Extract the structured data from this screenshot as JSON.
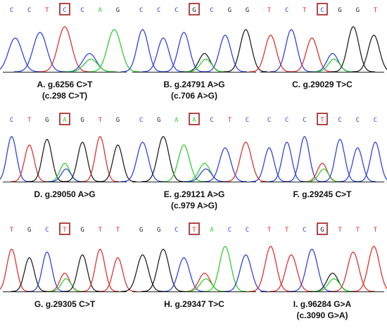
{
  "colors": {
    "A": "#33cc33",
    "C": "#3344dd",
    "G": "#222222",
    "T": "#dd3333",
    "highlight": "#a11a1a"
  },
  "panels": [
    {
      "sequence": [
        "C",
        "C",
        "T",
        "C",
        "C",
        "A",
        "G"
      ],
      "highlight": 3,
      "traces": "CCTCA",
      "caption": "A. g.6256 C>T",
      "subcaption": "(c.298 C>T)"
    },
    {
      "sequence": [
        "C",
        "C",
        "C",
        "G",
        "C",
        "G",
        "G"
      ],
      "highlight": 3,
      "traces": "CCCGCG",
      "caption": "B. g.24791 A>G",
      "subcaption": "(c.706 A>G)"
    },
    {
      "sequence": [
        "T",
        "C",
        "T",
        "C",
        "G",
        "G",
        "T"
      ],
      "highlight": 3,
      "traces": "TCTCGG",
      "caption": "C. g.29029 T>C",
      "subcaption": ""
    },
    {
      "sequence": [
        "C",
        "T",
        "G",
        "A",
        "G",
        "T",
        "G"
      ],
      "highlight": 3,
      "traces": "CTGAGTG",
      "caption": "D. g.29050 A>G",
      "subcaption": ""
    },
    {
      "sequence": [
        "C",
        "G",
        "A",
        "A",
        "C",
        "T",
        "C"
      ],
      "highlight": 3,
      "traces": "CGAACT",
      "caption": "E. g.29121 A>G",
      "subcaption": "(c.979 A>G)"
    },
    {
      "sequence": [
        "C",
        "C",
        "C",
        "T",
        "C",
        "C",
        "C"
      ],
      "highlight": 3,
      "traces": "CCCTCCC",
      "caption": "F. g.29245 C>T",
      "subcaption": ""
    },
    {
      "sequence": [
        "T",
        "G",
        "C",
        "T",
        "G",
        "T",
        "T"
      ],
      "highlight": 3,
      "traces": "TGCTGTT",
      "caption": "G. g.29305 C>T",
      "subcaption": ""
    },
    {
      "sequence": [
        "G",
        "G",
        "C",
        "T",
        "A",
        "C",
        "C"
      ],
      "highlight": 3,
      "traces": "GGCTAC",
      "caption": "H. g.29347 T>C",
      "subcaption": ""
    },
    {
      "sequence": [
        "T",
        "T",
        "C",
        "G",
        "T",
        "T",
        "T"
      ],
      "highlight": 3,
      "traces": "TTCGTT",
      "caption": "I. g.96284 G>A",
      "subcaption": "(c.3090 G>A)"
    }
  ]
}
